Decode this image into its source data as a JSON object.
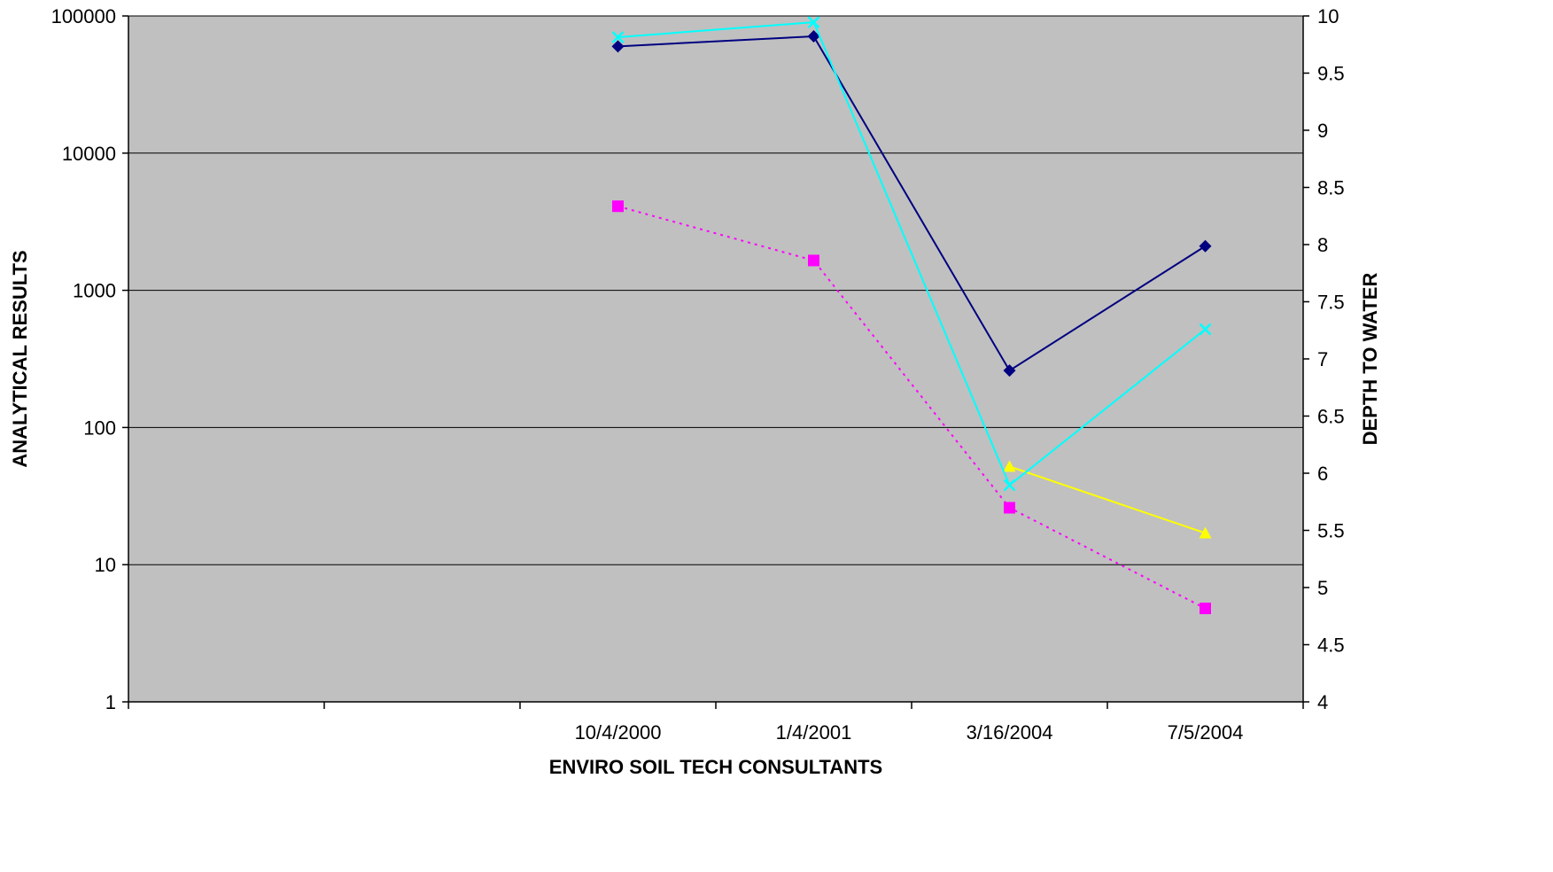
{
  "chart_data": {
    "type": "line",
    "title": "",
    "xlabel": "ENVIRO SOIL TECH CONSULTANTS",
    "ylabel": "ANALYTICAL RESULTS",
    "y2label": "DEPTH TO WATER",
    "categories": [
      "",
      "",
      "10/4/2000",
      "1/4/2001",
      "3/16/2004",
      "7/5/2004"
    ],
    "y_scale": "log",
    "ylim": [
      1,
      100000
    ],
    "y_ticks": [
      "1",
      "10",
      "100",
      "1000",
      "10000",
      "100000"
    ],
    "y2lim": [
      4,
      10
    ],
    "y2_ticks": [
      "4",
      "4.5",
      "5",
      "5.5",
      "6",
      "6.5",
      "7",
      "7.5",
      "8",
      "8.5",
      "9",
      "9.5",
      "10"
    ],
    "grid": true,
    "plot_background": "#c0c0c0",
    "series": [
      {
        "axis": "left",
        "color": "#000080",
        "marker": "diamond",
        "dash": "solid",
        "values": [
          null,
          null,
          60000,
          71000,
          260,
          2100
        ]
      },
      {
        "axis": "left",
        "color": "#ff00ff",
        "marker": "square",
        "dash": "dotted",
        "values": [
          null,
          null,
          4100,
          1650,
          26,
          4.8
        ]
      },
      {
        "axis": "left",
        "color": "#ffff00",
        "marker": "triangle",
        "dash": "solid",
        "values": [
          null,
          null,
          null,
          null,
          52,
          17
        ]
      },
      {
        "axis": "left",
        "color": "#00ffff",
        "marker": "x",
        "dash": "solid",
        "values": [
          null,
          null,
          70000,
          90000,
          38,
          520
        ]
      }
    ]
  }
}
